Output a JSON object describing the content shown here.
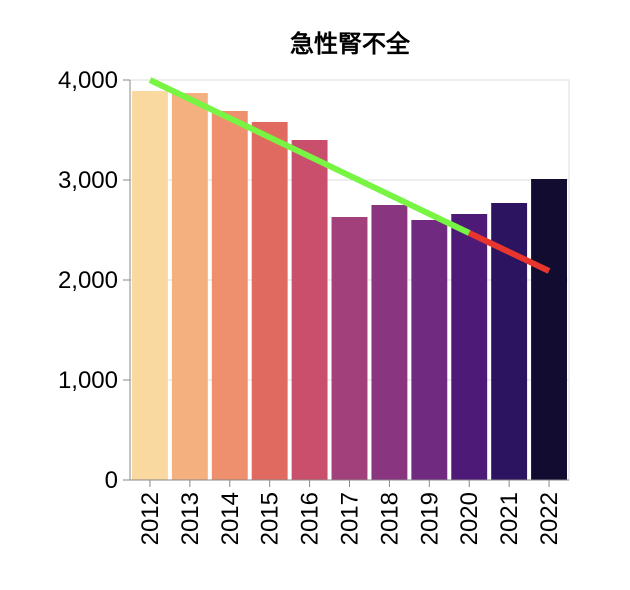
{
  "chart_data": {
    "type": "bar",
    "title": "急性腎不全",
    "xlabel": "",
    "ylabel": "",
    "categories": [
      "2012",
      "2013",
      "2014",
      "2015",
      "2016",
      "2017",
      "2018",
      "2019",
      "2020",
      "2021",
      "2022"
    ],
    "values": [
      3890,
      3870,
      3690,
      3580,
      3400,
      2630,
      2750,
      2600,
      2660,
      2770,
      3010
    ],
    "ylim": [
      0,
      4000
    ],
    "yticks": [
      0,
      1000,
      2000,
      3000,
      4000
    ],
    "ytick_labels": [
      "0",
      "1,000",
      "2,000",
      "3,000",
      "4,000"
    ],
    "grid": true,
    "bar_colors": [
      "#f9d9a0",
      "#f4b07f",
      "#ee8f6d",
      "#e16a60",
      "#c94f6d",
      "#a1407a",
      "#8a3580",
      "#702a80",
      "#4e1a78",
      "#2d1460",
      "#120d30"
    ],
    "trend_lines": [
      {
        "color": "#77f542",
        "from": {
          "x": "2012",
          "y": 4000
        },
        "to": {
          "x": "2020",
          "y": 2470
        }
      },
      {
        "color": "#e8352e",
        "from": {
          "x": "2020",
          "y": 2470
        },
        "to": {
          "x": "2022",
          "y": 2090
        }
      }
    ]
  }
}
